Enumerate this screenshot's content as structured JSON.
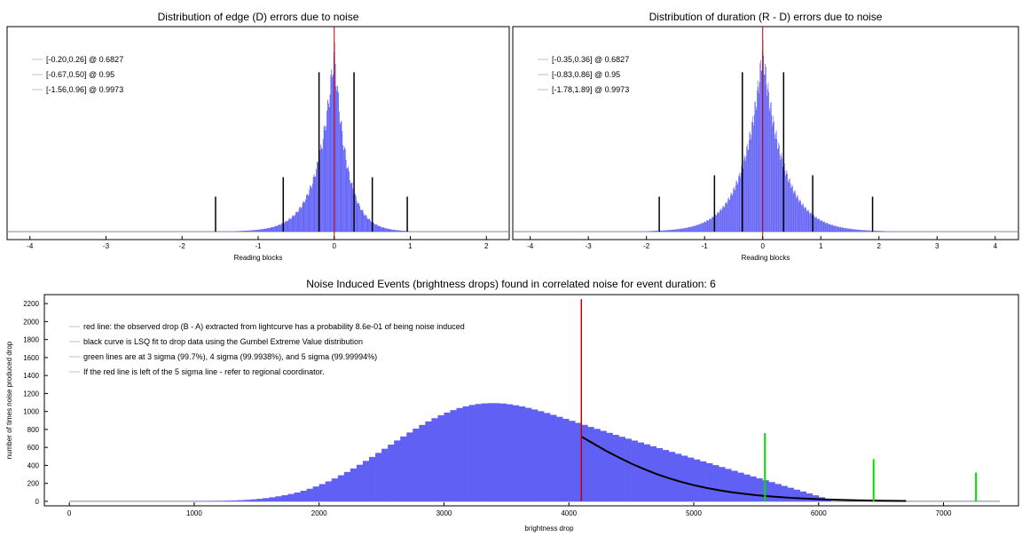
{
  "colors": {
    "histogram": "#6060f5",
    "red_line": "#c00000",
    "black": "#000000",
    "green": "#00dd00",
    "axis": "#000000",
    "frame": "#000000"
  },
  "chart_data": [
    {
      "type": "histogram",
      "title": "Distribution of edge (D) errors due to noise",
      "xlabel": "Reading blocks",
      "xlim": [
        -4.3,
        2.3
      ],
      "xticks": [
        -4,
        -3,
        -2,
        -1,
        0,
        1,
        2
      ],
      "yticks": [],
      "distribution": {
        "center": 0.0,
        "left_scale": 0.22,
        "right_scale": 0.17,
        "peak": 1.0
      },
      "legend": [
        "[-0.20,0.26] @ 0.6827",
        "[-0.67,0.50] @ 0.95",
        "[-1.56,0.96] @ 0.9973"
      ],
      "red_line_x": 0.0,
      "interval_lines": [
        {
          "x": -0.2,
          "rel_height": 0.82
        },
        {
          "x": 0.26,
          "rel_height": 0.82
        },
        {
          "x": -0.67,
          "rel_height": 0.28
        },
        {
          "x": 0.5,
          "rel_height": 0.28
        },
        {
          "x": -1.56,
          "rel_height": 0.18
        },
        {
          "x": 0.96,
          "rel_height": 0.18
        }
      ]
    },
    {
      "type": "histogram",
      "title": "Distribution of duration (R - D) errors due to noise",
      "xlabel": "Reading blocks",
      "xlim": [
        -4.3,
        4.4
      ],
      "xticks": [
        -4,
        -3,
        -2,
        -1,
        0,
        1,
        2,
        3,
        4
      ],
      "yticks": [],
      "distribution": {
        "center": 0.0,
        "left_scale": 0.34,
        "right_scale": 0.36,
        "peak": 1.0
      },
      "legend": [
        "[-0.35,0.36] @ 0.6827",
        "[-0.83,0.86] @ 0.95",
        "[-1.78,1.89] @ 0.9973"
      ],
      "red_line_x": 0.0,
      "interval_lines": [
        {
          "x": -0.35,
          "rel_height": 0.82
        },
        {
          "x": 0.36,
          "rel_height": 0.82
        },
        {
          "x": -0.83,
          "rel_height": 0.29
        },
        {
          "x": 0.86,
          "rel_height": 0.29
        },
        {
          "x": -1.78,
          "rel_height": 0.18
        },
        {
          "x": 1.89,
          "rel_height": 0.18
        }
      ]
    },
    {
      "type": "histogram",
      "title": "Noise Induced Events (brightness drops) found in correlated noise for event duration: 6",
      "xlabel": "brightness drop",
      "ylabel": "number of times noise produced drop",
      "xlim": [
        -200,
        7600
      ],
      "ylim": [
        -50,
        2300
      ],
      "xticks": [
        0,
        1000,
        2000,
        3000,
        4000,
        5000,
        6000,
        7000
      ],
      "yticks": [
        0,
        200,
        400,
        600,
        800,
        1000,
        1200,
        1400,
        1600,
        1800,
        2000,
        2200
      ],
      "bins": {
        "start": 1000,
        "width": 50,
        "counts": [
          2,
          3,
          4,
          5,
          6,
          8,
          10,
          13,
          17,
          22,
          28,
          36,
          45,
          56,
          68,
          82,
          98,
          118,
          140,
          165,
          192,
          222,
          255,
          290,
          327,
          366,
          407,
          450,
          494,
          539,
          585,
          631,
          677,
          722,
          766,
          809,
          850,
          889,
          925,
          958,
          988,
          1015,
          1038,
          1057,
          1072,
          1083,
          1090,
          1093,
          1092,
          1088,
          1080,
          1069,
          1056,
          1040,
          1022,
          1003,
          983,
          962,
          940,
          918,
          896,
          873,
          851,
          828,
          806,
          784,
          762,
          740,
          718,
          697,
          676,
          655,
          634,
          613,
          592,
          571,
          550,
          529,
          508,
          487,
          466,
          445,
          424,
          403,
          382,
          361,
          340,
          319,
          298,
          277,
          256,
          235,
          214,
          193,
          172,
          151,
          130,
          109,
          88,
          67,
          46,
          25
        ],
        "note": "bin counts are an approximation read off the bars"
      },
      "gumbel_fit": [
        [
          4100,
          720
        ],
        [
          4200,
          640
        ],
        [
          4300,
          560
        ],
        [
          4400,
          488
        ],
        [
          4500,
          420
        ],
        [
          4600,
          360
        ],
        [
          4700,
          305
        ],
        [
          4800,
          258
        ],
        [
          4900,
          216
        ],
        [
          5000,
          180
        ],
        [
          5100,
          150
        ],
        [
          5200,
          124
        ],
        [
          5300,
          102
        ],
        [
          5400,
          84
        ],
        [
          5500,
          69
        ],
        [
          5600,
          56
        ],
        [
          5700,
          46
        ],
        [
          5800,
          37
        ],
        [
          5900,
          30
        ],
        [
          6000,
          24
        ],
        [
          6100,
          19
        ],
        [
          6200,
          15
        ],
        [
          6300,
          12
        ],
        [
          6400,
          9
        ],
        [
          6500,
          7
        ],
        [
          6600,
          5
        ],
        [
          6700,
          4
        ]
      ],
      "red_line": {
        "x": 4100,
        "height": 2250
      },
      "green_lines": [
        {
          "x": 5570,
          "height": 760
        },
        {
          "x": 6440,
          "height": 470
        },
        {
          "x": 7260,
          "height": 320
        }
      ],
      "legend": [
        "red line: the observed drop (B - A) extracted from lightcurve has a probability 8.6e-01 of being noise induced",
        "black curve is LSQ fit to drop data using the Gumbel Extreme Value distribution",
        "green lines are at 3 sigma (99.7%), 4 sigma (99.9938%), and 5 sigma (99.99994%)",
        "If the red line is left of the 5 sigma line - refer to regional coordinator."
      ]
    }
  ]
}
